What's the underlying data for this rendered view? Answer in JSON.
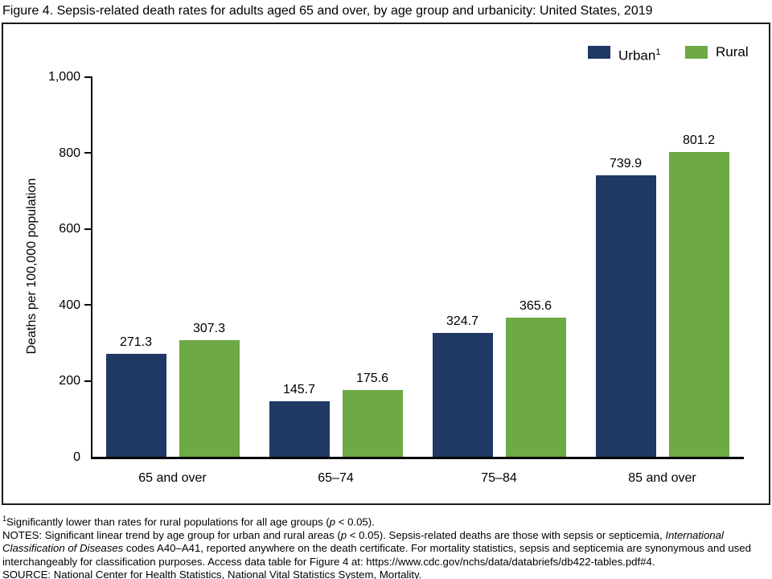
{
  "figure": {
    "title": "Figure 4. Sepsis-related death rates for adults aged 65 and over, by age group and urbanicity: United States, 2019"
  },
  "legend": {
    "urban_label": "Urban",
    "urban_sup": "1",
    "rural_label": "Rural"
  },
  "colors": {
    "urban": "#1f3864",
    "rural": "#6da945",
    "axis": "#000000",
    "frame_border": "#1a1a1a"
  },
  "chart_data": {
    "type": "bar",
    "title": "Sepsis-related death rates for adults aged 65 and over, by age group and urbanicity: United States, 2019",
    "categories": [
      "65 and over",
      "65–74",
      "75–84",
      "85 and over"
    ],
    "series": [
      {
        "name": "Urban",
        "color": "#1f3864",
        "values": [
          271.3,
          145.7,
          324.7,
          739.9
        ]
      },
      {
        "name": "Rural",
        "color": "#6da945",
        "values": [
          307.3,
          175.6,
          365.6,
          801.2
        ]
      }
    ],
    "xlabel": "",
    "ylabel": "Deaths per 100,000 population",
    "ylim": [
      0,
      1000
    ],
    "yticks": [
      0,
      200,
      400,
      600,
      800,
      1000
    ],
    "ytick_labels": [
      "0",
      "200",
      "400",
      "600",
      "800",
      "1,000"
    ],
    "grid": false,
    "legend_position": "top-right",
    "value_labels": true
  },
  "footnotes": {
    "fn1_sup": "1",
    "fn1_pre": "Significantly lower than rates for rural populations for all age groups (",
    "fn1_italic": "p",
    "fn1_post": " < 0.05).",
    "notes_pre": "NOTES: Significant linear trend by age group for urban and rural areas (",
    "notes_italic1": "p",
    "notes_mid1": " < 0.05). Sepsis-related deaths are those with sepsis or septicemia, ",
    "notes_italic2": "International Classification of Diseases",
    "notes_mid2": " codes A40–A41, reported anywhere on the death certificate. For mortality statistics, sepsis and septicemia are synonymous and used interchangeably for classification purposes. Access data table for Figure 4 at: https://www.cdc.gov/nchs/data/databriefs/db422-tables.pdf#4.",
    "source": "SOURCE: National Center for Health Statistics, National Vital Statistics System, Mortality."
  }
}
